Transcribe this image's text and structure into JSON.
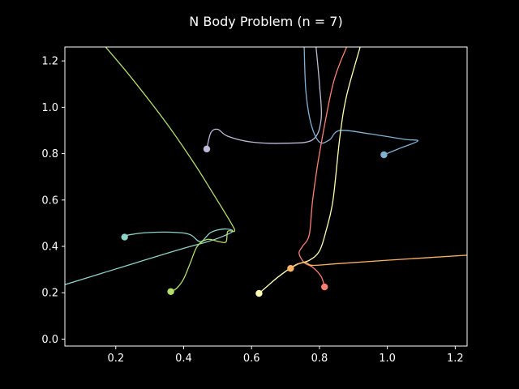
{
  "chart_data": {
    "type": "line",
    "title": "N Body Problem (n = 7)",
    "xlabel": "",
    "ylabel": "",
    "xlim": [
      0.05,
      1.235
    ],
    "ylim": [
      -0.03,
      1.26
    ],
    "x_ticks": [
      0.2,
      0.4,
      0.6,
      0.8,
      1.0,
      1.2
    ],
    "x_tick_labels": [
      "0.2",
      "0.4",
      "0.6",
      "0.8",
      "1.0",
      "1.2"
    ],
    "y_ticks": [
      0.0,
      0.2,
      0.4,
      0.6,
      0.8,
      1.0,
      1.2
    ],
    "y_tick_labels": [
      "0.0",
      "0.2",
      "0.4",
      "0.6",
      "0.8",
      "1.0",
      "1.2"
    ],
    "grid": false,
    "background": "#000000",
    "series": [
      {
        "color": "#8dd3c7",
        "x": [
          0.05,
          0.15,
          0.25,
          0.35,
          0.42,
          0.47,
          0.51,
          0.545,
          0.52,
          0.48,
          0.45,
          0.42,
          0.38,
          0.3,
          0.24,
          0.226
        ],
        "y": [
          0.235,
          0.28,
          0.325,
          0.37,
          0.4,
          0.42,
          0.44,
          0.465,
          0.475,
          0.46,
          0.42,
          0.45,
          0.46,
          0.46,
          0.45,
          0.44
        ],
        "end": [
          0.226,
          0.44
        ]
      },
      {
        "color": "#b3de69",
        "x": [
          0.17,
          0.25,
          0.35,
          0.43,
          0.49,
          0.54,
          0.55,
          0.53,
          0.525,
          0.505,
          0.47,
          0.44,
          0.42,
          0.4,
          0.38,
          0.362
        ],
        "y": [
          1.26,
          1.12,
          0.93,
          0.76,
          0.62,
          0.5,
          0.465,
          0.465,
          0.42,
          0.42,
          0.43,
          0.4,
          0.33,
          0.26,
          0.22,
          0.205
        ],
        "end": [
          0.362,
          0.205
        ]
      },
      {
        "color": "#bebada",
        "x": [
          0.79,
          0.8,
          0.805,
          0.78,
          0.7,
          0.6,
          0.53,
          0.5,
          0.48,
          0.468
        ],
        "y": [
          1.26,
          1.1,
          0.95,
          0.86,
          0.845,
          0.85,
          0.875,
          0.905,
          0.89,
          0.82
        ],
        "end": [
          0.468,
          0.82
        ]
      },
      {
        "color": "#80b1d3",
        "x": [
          0.755,
          0.76,
          0.775,
          0.8,
          0.83,
          0.86,
          0.95,
          1.05,
          1.09,
          1.04,
          0.99
        ],
        "y": [
          1.26,
          1.07,
          0.93,
          0.85,
          0.86,
          0.9,
          0.885,
          0.862,
          0.855,
          0.825,
          0.795
        ],
        "end": [
          0.99,
          0.795
        ]
      },
      {
        "color": "#fb8072",
        "x": [
          0.88,
          0.84,
          0.8,
          0.78,
          0.77,
          0.75,
          0.74,
          0.755,
          0.78,
          0.805,
          0.815
        ],
        "y": [
          1.26,
          1.1,
          0.8,
          0.6,
          0.45,
          0.4,
          0.37,
          0.33,
          0.31,
          0.27,
          0.225
        ],
        "end": [
          0.815,
          0.225
        ]
      },
      {
        "color": "#ffffb3",
        "x": [
          0.92,
          0.88,
          0.86,
          0.84,
          0.82,
          0.8,
          0.77,
          0.73,
          0.68,
          0.64,
          0.622
        ],
        "y": [
          1.26,
          1.05,
          0.87,
          0.6,
          0.47,
          0.38,
          0.34,
          0.32,
          0.27,
          0.22,
          0.197
        ],
        "end": [
          0.622,
          0.197
        ]
      },
      {
        "color": "#fdb462",
        "x": [
          1.235,
          1.0,
          0.85,
          0.78,
          0.76,
          0.74,
          0.715
        ],
        "y": [
          0.362,
          0.34,
          0.325,
          0.318,
          0.33,
          0.325,
          0.305
        ],
        "end": [
          0.715,
          0.305
        ]
      }
    ]
  }
}
